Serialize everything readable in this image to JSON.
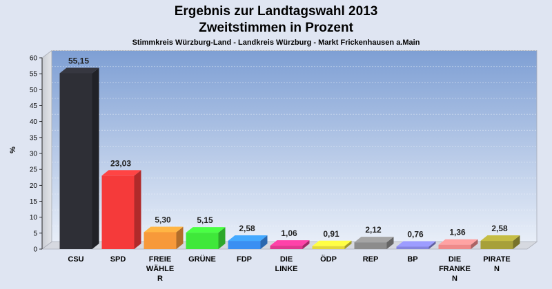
{
  "chart_data": {
    "type": "bar",
    "title_line1": "Ergebnis zur Landtagswahl 2013",
    "title_line2": "Zweitstimmen in Prozent",
    "subtitle": "Stimmkreis Würzburg-Land - Landkreis Würzburg - Markt Frickenhausen a.Main",
    "ylabel": "%",
    "ylim": [
      0,
      60
    ],
    "yticks": [
      0,
      5,
      10,
      15,
      20,
      25,
      30,
      35,
      40,
      45,
      50,
      55,
      60
    ],
    "categories": [
      [
        "CSU"
      ],
      [
        "SPD"
      ],
      [
        "FREIE",
        "WÄHLE",
        "R"
      ],
      [
        "GRÜNE"
      ],
      [
        "FDP"
      ],
      [
        "DIE",
        "LINKE"
      ],
      [
        "ÖDP"
      ],
      [
        "REP"
      ],
      [
        "BP"
      ],
      [
        "DIE",
        "FRANKE",
        "N"
      ],
      [
        "PIRATE",
        "N"
      ]
    ],
    "values": [
      55.15,
      23.03,
      5.3,
      5.15,
      2.58,
      1.06,
      0.91,
      2.12,
      0.76,
      1.36,
      2.58
    ],
    "value_labels": [
      "55,15",
      "23,03",
      "5,30",
      "5,15",
      "2,58",
      "1,06",
      "0,91",
      "2,12",
      "0,76",
      "1,36",
      "2,58"
    ],
    "colors": [
      "#2e2f36",
      "#f53a3a",
      "#f7993a",
      "#3fe83a",
      "#3a8ff2",
      "#e0388f",
      "#e3d83a",
      "#8c8c8c",
      "#8585dd",
      "#ef8a8a",
      "#a7a03a"
    ],
    "grid": true,
    "legend": "none"
  }
}
